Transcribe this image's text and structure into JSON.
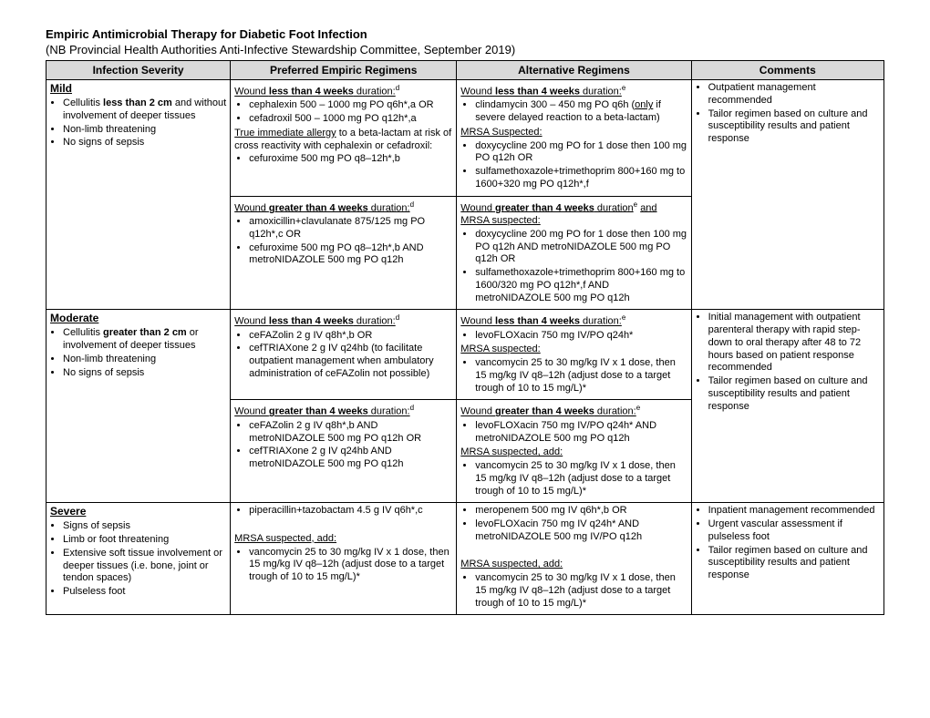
{
  "title": "Empiric Antimicrobial Therapy for Diabetic Foot Infection",
  "subtitle": "(NB Provincial Health Authorities Anti-Infective Stewardship Committee, September 2019)",
  "headers": {
    "c1": "Infection Severity",
    "c2": "Preferred Empiric Regimens",
    "c3": "Alternative Regimens",
    "c4": "Comments"
  },
  "mild": {
    "heading": "Mild",
    "sev_b1": "Cellulitis ",
    "sev_b1b": "less than 2 cm",
    "sev_b1c": " and without involvement of deeper tissues",
    "sev_b2": "Non-limb threatening",
    "sev_b3": "No signs of sepsis",
    "pref_h1a": "Wound ",
    "pref_h1b": "less than 4 weeks",
    "pref_h1c": " duration:",
    "pref_h1_sup": "d",
    "pref_b1": "cephalexin 500 – 1000 mg PO q6h*,a  OR",
    "pref_b2": "cefadroxil 500 – 1000 mg PO q12h*,a",
    "pref_note_a": "True immediate allergy",
    "pref_note_b": " to a beta-lactam at risk of cross reactivity with cephalexin or cefadroxil:",
    "pref_b3": "cefuroxime 500 mg PO q8–12h*,b",
    "pref_h2a": "Wound ",
    "pref_h2b": "greater than 4 weeks",
    "pref_h2c": " duration:",
    "pref_h2_sup": "d",
    "pref_b4": "amoxicillin+clavulanate 875/125 mg PO q12h*,c   OR",
    "pref_b5": "cefuroxime 500 mg PO q8–12h*,b  AND  metroNIDAZOLE 500 mg PO q12h",
    "alt_h1a": "Wound ",
    "alt_h1b": "less than 4 weeks",
    "alt_h1c": " duration:",
    "alt_h1_sup": "e",
    "alt_b1a": "clindamycin 300 – 450 mg PO q6h (",
    "alt_b1b": "only",
    "alt_b1c": " if severe delayed reaction to a beta-lactam)",
    "alt_mrsa": "MRSA Suspected:",
    "alt_b2": "doxycycline 200 mg PO for 1 dose then 100 mg PO q12h  OR",
    "alt_b3": "sulfamethoxazole+trimethoprim 800+160 mg to 1600+320 mg PO q12h*,f",
    "alt_h2a": "Wound ",
    "alt_h2b": "greater than 4 weeks",
    "alt_h2c": " duration",
    "alt_h2_sup": "e",
    "alt_h2d": "and MRSA suspected:",
    "alt_b4": "doxycycline 200 mg PO for 1 dose then 100 mg PO q12h AND metroNIDAZOLE 500 mg PO q12h  OR",
    "alt_b5": "sulfamethoxazole+trimethoprim 800+160 mg to 1600/320 mg PO q12h*,f AND metroNIDAZOLE 500 mg PO q12h",
    "com_b1": "Outpatient management recommended",
    "com_b2": "Tailor regimen based on culture and susceptibility results and patient response"
  },
  "moderate": {
    "heading": "Moderate",
    "sev_b1a": "Cellulitis ",
    "sev_b1b": "greater than 2 cm",
    "sev_b1c": " or involvement of deeper tissues",
    "sev_b2": "Non-limb threatening",
    "sev_b3": "No signs of sepsis",
    "pref_h1a": "Wound ",
    "pref_h1b": "less than 4 weeks",
    "pref_h1c": " duration:",
    "pref_h1_sup": "d",
    "pref_b1": "ceFAZolin 2 g IV q8h*,b   OR",
    "pref_b2": "cefTRIAXone 2 g IV q24hb (to facilitate outpatient management when ambulatory administration of ceFAZolin not possible)",
    "pref_h2a": "Wound ",
    "pref_h2b": "greater than 4 weeks",
    "pref_h2c": " duration:",
    "pref_h2_sup": "d",
    "pref_b3": "ceFAZolin 2 g IV q8h*,b AND metroNIDAZOLE 500 mg PO q12h   OR",
    "pref_b4": "cefTRIAXone 2 g IV q24hb AND metroNIDAZOLE 500 mg PO q12h",
    "alt_h1a": "Wound ",
    "alt_h1b": "less than 4 weeks",
    "alt_h1c": " duration:",
    "alt_h1_sup": "e",
    "alt_b1": "levoFLOXacin 750 mg IV/PO q24h*",
    "alt_mrsa": "MRSA suspected:",
    "alt_b2": "vancomycin 25 to 30 mg/kg IV x 1 dose, then 15 mg/kg IV q8–12h (adjust dose to a target trough of 10 to 15 mg/L)*",
    "alt_h2a": "Wound ",
    "alt_h2b": "greater than 4 weeks",
    "alt_h2c": " duration:",
    "alt_h2_sup": "e",
    "alt_b3": "levoFLOXacin 750 mg IV/PO q24h* AND metroNIDAZOLE 500 mg PO q12h",
    "alt_mrsa2": "MRSA suspected, add:",
    "alt_b4": "vancomycin 25 to 30 mg/kg IV x 1 dose, then 15 mg/kg IV q8–12h (adjust dose to a target trough of 10 to 15 mg/L)*",
    "com_b1": "Initial management with outpatient parenteral therapy with rapid step-down to oral therapy after 48 to 72 hours based on patient response recommended",
    "com_b2": "Tailor regimen based on culture and susceptibility results and patient response"
  },
  "severe": {
    "heading": "Severe",
    "sev_b1": "Signs of sepsis",
    "sev_b2": "Limb or foot threatening",
    "sev_b3": "Extensive soft tissue involvement or deeper tissues (i.e. bone, joint or tendon spaces)",
    "sev_b4": "Pulseless foot",
    "pref_b1": "piperacillin+tazobactam 4.5 g IV q6h*,c",
    "pref_mrsa": "MRSA suspected, add:",
    "pref_b2": "vancomycin 25 to 30 mg/kg IV x 1 dose, then 15 mg/kg IV q8–12h (adjust dose to a target trough of 10 to 15 mg/L)*",
    "alt_b1": "meropenem 500 mg IV q6h*,b   OR",
    "alt_b2": "levoFLOXacin 750 mg IV q24h* AND metroNIDAZOLE 500 mg IV/PO q12h",
    "alt_mrsa": "MRSA suspected, add:",
    "alt_b3": "vancomycin 25 to 30 mg/kg IV x 1 dose, then 15 mg/kg IV q8–12h (adjust dose to a target trough of 10 to 15 mg/L)*",
    "com_b1": "Inpatient management recommended",
    "com_b2": "Urgent vascular assessment if pulseless foot",
    "com_b3": "Tailor regimen based on culture and susceptibility results and patient response"
  }
}
